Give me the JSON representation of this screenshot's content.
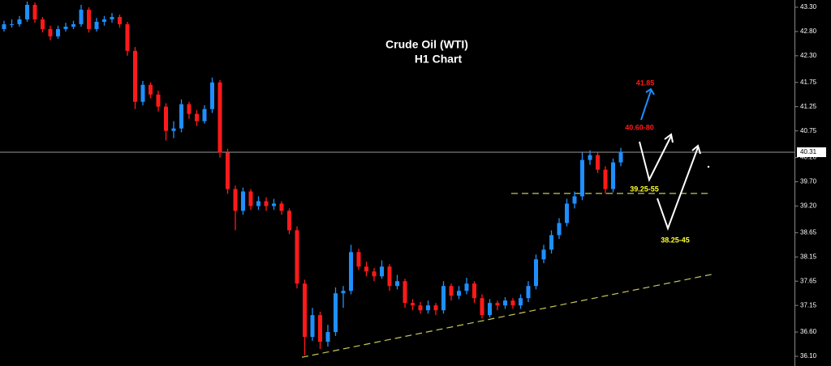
{
  "chart_data": {
    "type": "candlestick",
    "title": "Crude Oil (WTI)",
    "subtitle": "H1 Chart",
    "up_color": "#1e8fff",
    "down_color": "#ff1a1a",
    "ylim": [
      35.9,
      43.45
    ],
    "yticks": [
      {
        "value": 43.3,
        "label": "43.30"
      },
      {
        "value": 42.8,
        "label": "42.80"
      },
      {
        "value": 42.3,
        "label": "42.30"
      },
      {
        "value": 41.75,
        "label": "41.75"
      },
      {
        "value": 41.25,
        "label": "41.25"
      },
      {
        "value": 40.75,
        "label": "40.75"
      },
      {
        "value": 40.2,
        "label": "40.20"
      },
      {
        "value": 39.7,
        "label": "39.70"
      },
      {
        "value": 39.2,
        "label": "39.20"
      },
      {
        "value": 38.65,
        "label": "38.65"
      },
      {
        "value": 38.15,
        "label": "38.15"
      },
      {
        "value": 37.65,
        "label": "37.65"
      },
      {
        "value": 37.15,
        "label": "37.15"
      },
      {
        "value": 36.6,
        "label": "36.60"
      },
      {
        "value": 36.1,
        "label": "36.10"
      }
    ],
    "last_price": {
      "value": 40.31,
      "label": "40.31"
    },
    "support_level": 39.46,
    "trendline": [
      36.08,
      37.8
    ],
    "annotations": [
      "41.85",
      "40.60-80",
      "39.25-55",
      "38.25-45"
    ],
    "ohlc": [
      [
        42.85,
        43.02,
        42.8,
        42.95
      ],
      [
        42.95,
        43.05,
        42.88,
        42.95
      ],
      [
        42.95,
        43.12,
        42.9,
        43.05
      ],
      [
        43.05,
        43.42,
        43.0,
        43.35
      ],
      [
        43.35,
        43.4,
        42.98,
        43.05
      ],
      [
        43.05,
        43.1,
        42.78,
        42.85
      ],
      [
        42.85,
        42.92,
        42.62,
        42.7
      ],
      [
        42.7,
        42.92,
        42.65,
        42.85
      ],
      [
        42.85,
        42.98,
        42.8,
        42.9
      ],
      [
        42.9,
        43.02,
        42.85,
        42.95
      ],
      [
        42.95,
        43.35,
        42.9,
        43.25
      ],
      [
        43.25,
        43.3,
        42.78,
        42.85
      ],
      [
        42.85,
        43.08,
        42.8,
        43.0
      ],
      [
        43.0,
        43.12,
        42.92,
        43.05
      ],
      [
        43.05,
        43.18,
        42.98,
        43.1
      ],
      [
        43.1,
        43.15,
        42.88,
        42.95
      ],
      [
        42.95,
        43.0,
        42.3,
        42.4
      ],
      [
        42.4,
        42.48,
        41.2,
        41.35
      ],
      [
        41.35,
        41.78,
        41.28,
        41.7
      ],
      [
        41.7,
        41.75,
        41.42,
        41.5
      ],
      [
        41.5,
        41.58,
        41.15,
        41.25
      ],
      [
        41.25,
        41.32,
        40.55,
        40.75
      ],
      [
        40.75,
        40.95,
        40.6,
        40.8
      ],
      [
        40.8,
        41.4,
        40.72,
        41.3
      ],
      [
        41.3,
        41.35,
        41.0,
        41.1
      ],
      [
        41.1,
        41.18,
        40.85,
        40.95
      ],
      [
        40.95,
        41.28,
        40.9,
        41.2
      ],
      [
        41.2,
        41.85,
        41.12,
        41.75
      ],
      [
        41.75,
        41.8,
        40.2,
        40.3
      ],
      [
        40.3,
        40.38,
        39.45,
        39.55
      ],
      [
        39.55,
        39.62,
        38.7,
        39.1
      ],
      [
        39.1,
        39.58,
        39.02,
        39.5
      ],
      [
        39.5,
        39.55,
        39.12,
        39.2
      ],
      [
        39.2,
        39.4,
        39.12,
        39.3
      ],
      [
        39.3,
        39.38,
        39.1,
        39.2
      ],
      [
        39.2,
        39.35,
        39.12,
        39.25
      ],
      [
        39.25,
        39.3,
        39.02,
        39.1
      ],
      [
        39.1,
        39.15,
        38.62,
        38.7
      ],
      [
        38.7,
        38.78,
        37.5,
        37.6
      ],
      [
        37.6,
        37.68,
        36.12,
        36.5
      ],
      [
        36.5,
        37.1,
        36.42,
        36.95
      ],
      [
        36.95,
        37.02,
        36.25,
        36.4
      ],
      [
        36.4,
        36.75,
        36.3,
        36.6
      ],
      [
        36.6,
        37.52,
        36.52,
        37.4
      ],
      [
        37.4,
        37.55,
        37.1,
        37.45
      ],
      [
        37.45,
        38.4,
        37.38,
        38.25
      ],
      [
        38.25,
        38.32,
        37.88,
        37.95
      ],
      [
        37.95,
        38.05,
        37.75,
        37.85
      ],
      [
        37.85,
        37.92,
        37.65,
        37.75
      ],
      [
        37.75,
        38.08,
        37.7,
        37.95
      ],
      [
        37.95,
        38.0,
        37.45,
        37.55
      ],
      [
        37.55,
        37.78,
        37.48,
        37.65
      ],
      [
        37.65,
        37.7,
        37.1,
        37.2
      ],
      [
        37.2,
        37.28,
        37.05,
        37.15
      ],
      [
        37.15,
        37.22,
        36.98,
        37.05
      ],
      [
        37.05,
        37.25,
        36.98,
        37.15
      ],
      [
        37.15,
        37.2,
        36.95,
        37.05
      ],
      [
        37.05,
        37.65,
        36.98,
        37.55
      ],
      [
        37.55,
        37.6,
        37.25,
        37.35
      ],
      [
        37.35,
        37.55,
        37.28,
        37.45
      ],
      [
        37.45,
        37.72,
        37.38,
        37.6
      ],
      [
        37.6,
        37.65,
        37.2,
        37.3
      ],
      [
        37.3,
        37.38,
        36.88,
        36.95
      ],
      [
        36.95,
        37.28,
        36.9,
        37.2
      ],
      [
        37.2,
        37.25,
        37.05,
        37.15
      ],
      [
        37.15,
        37.32,
        37.08,
        37.25
      ],
      [
        37.25,
        37.3,
        37.08,
        37.15
      ],
      [
        37.15,
        37.38,
        37.08,
        37.3
      ],
      [
        37.3,
        37.65,
        37.22,
        37.55
      ],
      [
        37.55,
        38.2,
        37.48,
        38.1
      ],
      [
        38.1,
        38.4,
        38.02,
        38.3
      ],
      [
        38.3,
        38.7,
        38.22,
        38.6
      ],
      [
        38.6,
        38.95,
        38.52,
        38.85
      ],
      [
        38.85,
        39.35,
        38.78,
        39.25
      ],
      [
        39.25,
        39.5,
        39.15,
        39.4
      ],
      [
        39.4,
        40.3,
        39.32,
        40.15
      ],
      [
        40.15,
        40.35,
        40.05,
        40.25
      ],
      [
        40.25,
        40.3,
        39.88,
        39.95
      ],
      [
        39.95,
        40.02,
        39.45,
        39.55
      ],
      [
        39.55,
        40.18,
        39.48,
        40.1
      ],
      [
        40.1,
        40.4,
        40.02,
        40.31
      ]
    ]
  }
}
